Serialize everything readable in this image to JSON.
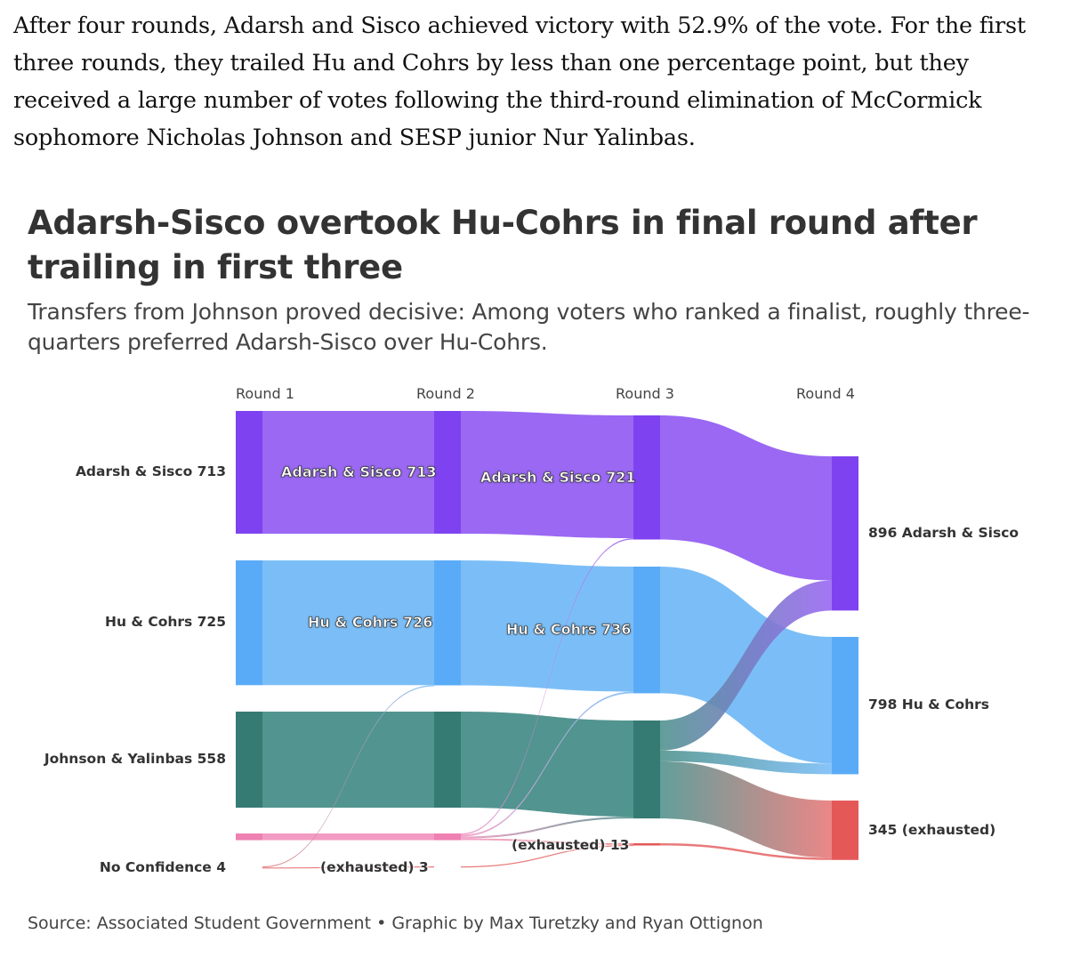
{
  "article": {
    "paragraph": "After four rounds, Adarsh and Sisco achieved victory with 52.9% of the vote. For the first three rounds, they trailed Hu and Cohrs by less than one percentage point, but they received a large number of votes following the third-round elimination of McCormick sophomore Nicholas Johnson and SESP junior Nur Yalinbas."
  },
  "chart_data": {
    "type": "sankey",
    "title": "Adarsh-Sisco overtook Hu-Cohrs in final round after trailing in first three",
    "subtitle": "Transfers from Johnson proved decisive: Among voters who ranked a finalist, roughly three-quarters preferred Adarsh-Sisco over Hu-Cohrs.",
    "source": "Source: Associated Student Government • Graphic by Max Turetzky and Ryan Ottignon",
    "rounds": [
      "Round 1",
      "Round 2",
      "Round 3",
      "Round 4"
    ],
    "colors": {
      "as_node": "#7f42f0",
      "as_band": "#9a68f3",
      "hc_node": "#5aabf7",
      "hc_band": "#7bbef7",
      "jy_node": "#367a74",
      "jy_band": "#52948f",
      "ot_node": "#ee80b2",
      "ot_band": "#f29bc3",
      "ex_node": "#e45858",
      "ex_band": "#e87a7a"
    },
    "nodes": [
      {
        "id": "r1_as",
        "round": 1,
        "group": "as",
        "value": 713,
        "label": "Adarsh & Sisco 713"
      },
      {
        "id": "r1_hc",
        "round": 1,
        "group": "hc",
        "value": 725,
        "label": "Hu & Cohrs 725"
      },
      {
        "id": "r1_jy",
        "round": 1,
        "group": "jy",
        "value": 558,
        "label": "Johnson & Yalinbas 558"
      },
      {
        "id": "r1_ot",
        "round": 1,
        "group": "ot",
        "value": 39
      },
      {
        "id": "r1_nc",
        "round": 1,
        "group": "ex",
        "value": 4,
        "label": "No Confidence 4"
      },
      {
        "id": "r2_as",
        "round": 2,
        "group": "as",
        "value": 713,
        "label": "Adarsh & Sisco 713"
      },
      {
        "id": "r2_hc",
        "round": 2,
        "group": "hc",
        "value": 726,
        "label": "Hu & Cohrs 726"
      },
      {
        "id": "r2_jy",
        "round": 2,
        "group": "jy",
        "value": 558
      },
      {
        "id": "r2_ot",
        "round": 2,
        "group": "ot",
        "value": 39
      },
      {
        "id": "r2_ex",
        "round": 2,
        "group": "ex",
        "value": 3,
        "label": "(exhausted) 3"
      },
      {
        "id": "r3_as",
        "round": 3,
        "group": "as",
        "value": 721,
        "label": "Adarsh & Sisco 721"
      },
      {
        "id": "r3_hc",
        "round": 3,
        "group": "hc",
        "value": 736,
        "label": "Hu & Cohrs 736"
      },
      {
        "id": "r3_jy",
        "round": 3,
        "group": "jy",
        "value": 569
      },
      {
        "id": "r3_ex",
        "round": 3,
        "group": "ex",
        "value": 13,
        "label": "(exhausted) 13"
      },
      {
        "id": "r4_as",
        "round": 4,
        "group": "as",
        "value": 896,
        "label": "896 Adarsh & Sisco"
      },
      {
        "id": "r4_hc",
        "round": 4,
        "group": "hc",
        "value": 798,
        "label": "798 Hu & Cohrs"
      },
      {
        "id": "r4_ex",
        "round": 4,
        "group": "ex",
        "value": 345,
        "label": "345 (exhausted)"
      }
    ],
    "flows": [
      {
        "source": "r1_as",
        "target": "r2_as",
        "value": 713
      },
      {
        "source": "r1_hc",
        "target": "r2_hc",
        "value": 725
      },
      {
        "source": "r1_jy",
        "target": "r2_jy",
        "value": 558
      },
      {
        "source": "r1_ot",
        "target": "r2_ot",
        "value": 39
      },
      {
        "source": "r1_nc",
        "target": "r2_hc",
        "value": 1
      },
      {
        "source": "r1_nc",
        "target": "r2_ex",
        "value": 3
      },
      {
        "source": "r2_as",
        "target": "r3_as",
        "value": 713
      },
      {
        "source": "r2_hc",
        "target": "r3_hc",
        "value": 726
      },
      {
        "source": "r2_jy",
        "target": "r3_jy",
        "value": 558
      },
      {
        "source": "r2_ot",
        "target": "r3_as",
        "value": 8
      },
      {
        "source": "r2_ot",
        "target": "r3_hc",
        "value": 10
      },
      {
        "source": "r2_ot",
        "target": "r3_jy",
        "value": 11
      },
      {
        "source": "r2_ot",
        "target": "r3_ex",
        "value": 10
      },
      {
        "source": "r2_ex",
        "target": "r3_ex",
        "value": 3
      },
      {
        "source": "r3_as",
        "target": "r4_as",
        "value": 721
      },
      {
        "source": "r3_hc",
        "target": "r4_hc",
        "value": 736
      },
      {
        "source": "r3_jy",
        "target": "r4_as",
        "value": 175
      },
      {
        "source": "r3_jy",
        "target": "r4_hc",
        "value": 62
      },
      {
        "source": "r3_jy",
        "target": "r4_ex",
        "value": 332
      },
      {
        "source": "r3_ex",
        "target": "r4_ex",
        "value": 13
      }
    ]
  }
}
